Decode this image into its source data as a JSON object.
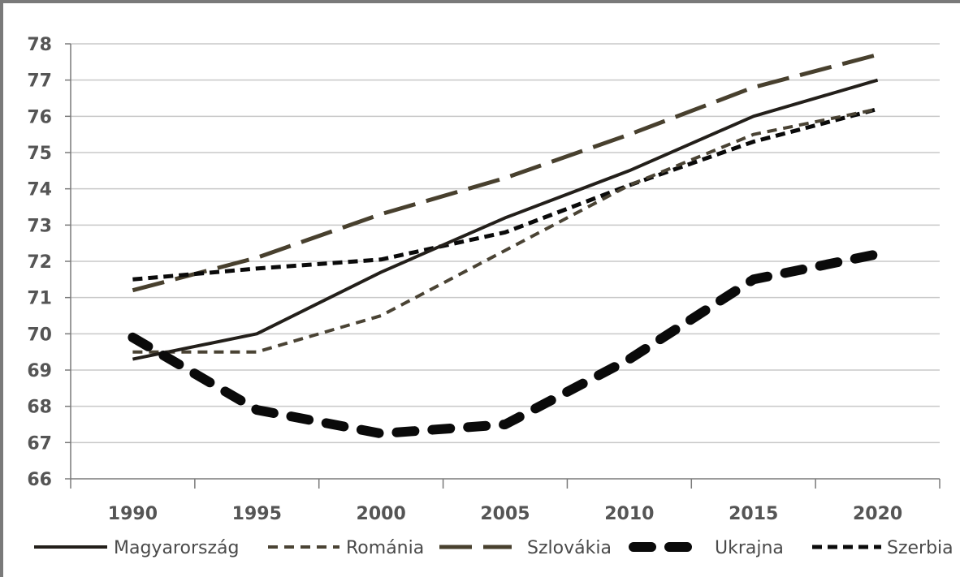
{
  "chart_data": {
    "type": "line",
    "title": "",
    "xlabel": "",
    "ylabel": "",
    "x": [
      1990,
      1995,
      2000,
      2005,
      2010,
      2015,
      2020
    ],
    "x_tick_labels": [
      "1990",
      "1995",
      "2000",
      "2005",
      "2010",
      "2015",
      "2020"
    ],
    "ylim": [
      66,
      78
    ],
    "y_ticks": [
      66,
      67,
      68,
      69,
      70,
      71,
      72,
      73,
      74,
      75,
      76,
      77,
      78
    ],
    "y_tick_labels": [
      "66",
      "67",
      "68",
      "69",
      "70",
      "71",
      "72",
      "73",
      "74",
      "75",
      "76",
      "77",
      "78"
    ],
    "grid": "horizontal",
    "legend_position": "bottom",
    "series": [
      {
        "name": "Magyarország",
        "color": "#231f1a",
        "dash": "solid",
        "values": [
          69.3,
          70.0,
          71.7,
          73.2,
          74.5,
          76.0,
          77.0
        ]
      },
      {
        "name": "Románia",
        "color": "#4a4334",
        "dash": "short",
        "values": [
          69.5,
          69.5,
          70.5,
          72.3,
          74.1,
          75.5,
          76.2
        ]
      },
      {
        "name": "Szlovákia",
        "color": "#48402e",
        "dash": "long",
        "values": [
          71.2,
          72.1,
          73.3,
          74.3,
          75.5,
          76.8,
          77.7
        ]
      },
      {
        "name": "Ukrajna",
        "color": "#0a0a0a",
        "dash": "thick",
        "values": [
          69.9,
          67.9,
          67.25,
          67.5,
          69.3,
          71.5,
          72.2
        ]
      },
      {
        "name": "Szerbia",
        "color": "#0a0a0a",
        "dash": "dense",
        "values": [
          71.5,
          71.8,
          72.05,
          72.8,
          74.1,
          75.3,
          76.2
        ]
      }
    ]
  }
}
